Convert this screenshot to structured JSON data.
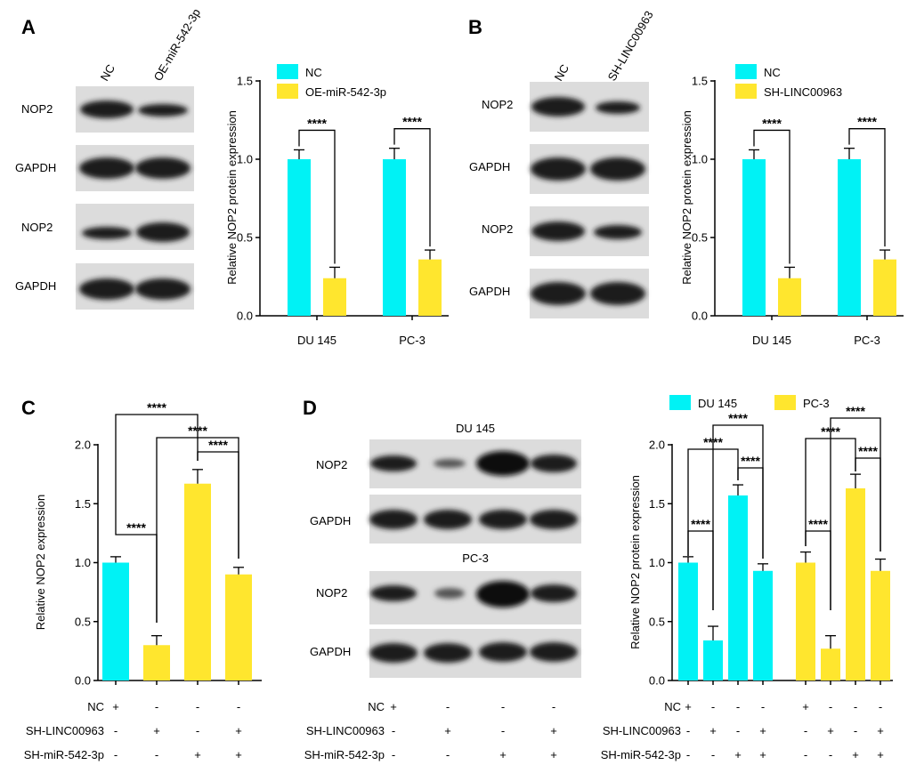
{
  "colors": {
    "cyan": "#00F2F5",
    "yellow": "#FFE62E",
    "blot_bg": "#dcdcdc",
    "band": "#1a1a1a"
  },
  "panels": {
    "A": {
      "label": "A",
      "blot": {
        "lanes": [
          "NC",
          "OE-miR-542-3p"
        ],
        "rows": [
          "NOP2",
          "GAPDH",
          "NOP2",
          "GAPDH"
        ]
      },
      "chart_data": {
        "type": "bar",
        "ylabel": "Relative NOP2 protein expression",
        "ylim": [
          0,
          1.5
        ],
        "yticks": [
          "0.0",
          "0.5",
          "1.0",
          "1.5"
        ],
        "categories": [
          "DU 145",
          "PC-3"
        ],
        "series": [
          {
            "name": "NC",
            "color": "#00F2F5",
            "values": [
              1.0,
              1.0
            ],
            "errors": [
              0.06,
              0.07
            ]
          },
          {
            "name": "OE-miR-542-3p",
            "color": "#FFE62E",
            "values": [
              0.24,
              0.36
            ],
            "errors": [
              0.07,
              0.06
            ]
          }
        ],
        "significance": [
          "****",
          "****"
        ]
      }
    },
    "B": {
      "label": "B",
      "blot": {
        "lanes": [
          "NC",
          "SH-LINC00963"
        ],
        "rows": [
          "NOP2",
          "GAPDH",
          "NOP2",
          "GAPDH"
        ]
      },
      "chart_data": {
        "type": "bar",
        "ylabel": "Relative NOP2 protein expression",
        "ylim": [
          0,
          1.5
        ],
        "yticks": [
          "0.0",
          "0.5",
          "1.0",
          "1.5"
        ],
        "categories": [
          "DU 145",
          "PC-3"
        ],
        "series": [
          {
            "name": "NC",
            "color": "#00F2F5",
            "values": [
              1.0,
              1.0
            ],
            "errors": [
              0.06,
              0.07
            ]
          },
          {
            "name": "SH-LINC00963",
            "color": "#FFE62E",
            "values": [
              0.24,
              0.36
            ],
            "errors": [
              0.07,
              0.06
            ]
          }
        ],
        "significance": [
          "****",
          "****"
        ]
      }
    },
    "C": {
      "label": "C",
      "chart_data": {
        "type": "bar",
        "ylabel": "Relative NOP2 expression",
        "ylim": [
          0,
          2.0
        ],
        "yticks": [
          "0.0",
          "0.5",
          "1.0",
          "1.5",
          "2.0"
        ],
        "values": [
          1.0,
          0.3,
          1.67,
          0.9
        ],
        "errors": [
          0.05,
          0.08,
          0.12,
          0.06
        ],
        "bar_colors": [
          "#00F2F5",
          "#FFE62E",
          "#FFE62E",
          "#FFE62E"
        ],
        "significance": [
          "****",
          "****",
          "****",
          "****"
        ]
      },
      "conditions": [
        {
          "name": "NC",
          "values": [
            "+",
            "-",
            "-",
            "-"
          ]
        },
        {
          "name": "SH-LINC00963",
          "values": [
            "-",
            "+",
            "-",
            "+"
          ]
        },
        {
          "name": "SH-miR-542-3p",
          "values": [
            "-",
            "-",
            "+",
            "+"
          ]
        }
      ]
    },
    "D": {
      "label": "D",
      "blot": {
        "groups": [
          {
            "title": "DU 145",
            "rows": [
              "NOP2",
              "GAPDH"
            ]
          },
          {
            "title": "PC-3",
            "rows": [
              "NOP2",
              "GAPDH"
            ]
          }
        ]
      },
      "blot_conditions": [
        {
          "name": "NC",
          "values": [
            "+",
            "-",
            "-",
            "-"
          ]
        },
        {
          "name": "SH-LINC00963",
          "values": [
            "-",
            "+",
            "-",
            "+"
          ]
        },
        {
          "name": "SH-miR-542-3p",
          "values": [
            "-",
            "-",
            "+",
            "+"
          ]
        }
      ],
      "chart_data": {
        "type": "bar",
        "ylabel": "Relative NOP2 protein expression",
        "ylim": [
          0,
          2.0
        ],
        "yticks": [
          "0.0",
          "0.5",
          "1.0",
          "1.5",
          "2.0"
        ],
        "legend": [
          {
            "name": "DU 145",
            "color": "#00F2F5"
          },
          {
            "name": "PC-3",
            "color": "#FFE62E"
          }
        ],
        "groups": [
          {
            "name": "DU 145",
            "color": "#00F2F5",
            "values": [
              1.0,
              0.34,
              1.57,
              0.93
            ],
            "errors": [
              0.05,
              0.12,
              0.09,
              0.06
            ]
          },
          {
            "name": "PC-3",
            "color": "#FFE62E",
            "values": [
              1.0,
              0.27,
              1.63,
              0.93
            ],
            "errors": [
              0.09,
              0.11,
              0.12,
              0.1
            ]
          }
        ],
        "significance": [
          "****",
          "****",
          "****",
          "****",
          "****",
          "****",
          "****",
          "****"
        ]
      },
      "conditions": [
        {
          "name": "NC",
          "values": [
            "+",
            "-",
            "-",
            "-",
            "+",
            "-",
            "-",
            "-"
          ]
        },
        {
          "name": "SH-LINC00963",
          "values": [
            "-",
            "+",
            "-",
            "+",
            "-",
            "+",
            "-",
            "+"
          ]
        },
        {
          "name": "SH-miR-542-3p",
          "values": [
            "-",
            "-",
            "+",
            "+",
            "-",
            "-",
            "+",
            "+"
          ]
        }
      ]
    }
  }
}
